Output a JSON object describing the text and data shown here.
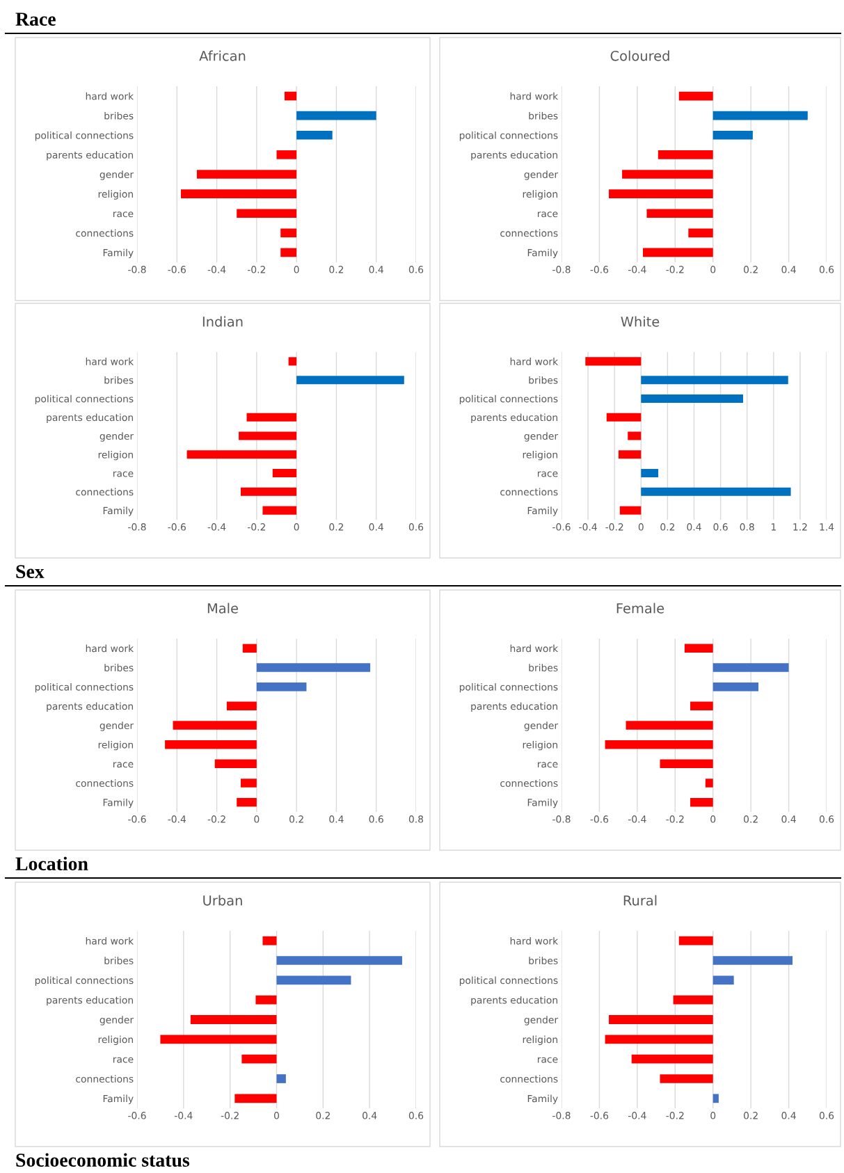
{
  "chart_data": [
    {
      "type": "bar",
      "orientation": "horizontal",
      "title": "African",
      "annotations": [
        "Race"
      ],
      "categories": [
        "hard work",
        "bribes",
        "political connections",
        "parents education",
        "gender",
        "religion",
        "race",
        "connections",
        "Family"
      ],
      "values": [
        -0.06,
        0.4,
        0.18,
        -0.1,
        -0.5,
        -0.58,
        -0.3,
        -0.08,
        -0.08
      ],
      "colors": [
        "#ff0000",
        "#0070c0",
        "#0070c0",
        "#ff0000",
        "#ff0000",
        "#ff0000",
        "#ff0000",
        "#ff0000",
        "#ff0000"
      ],
      "xlim": [
        -0.8,
        0.6
      ],
      "xticks": [
        -0.8,
        -0.6,
        -0.4,
        -0.2,
        0,
        0.2,
        0.4,
        0.6
      ],
      "grid": "x",
      "legend": false
    },
    {
      "type": "bar",
      "orientation": "horizontal",
      "title": "Coloured",
      "categories": [
        "hard work",
        "bribes",
        "political connections",
        "parents education",
        "gender",
        "religion",
        "race",
        "connections",
        "Family"
      ],
      "values": [
        -0.18,
        0.5,
        0.21,
        -0.29,
        -0.48,
        -0.55,
        -0.35,
        -0.13,
        -0.37
      ],
      "colors": [
        "#ff0000",
        "#0070c0",
        "#0070c0",
        "#ff0000",
        "#ff0000",
        "#ff0000",
        "#ff0000",
        "#ff0000",
        "#ff0000"
      ],
      "xlim": [
        -0.8,
        0.6
      ],
      "xticks": [
        -0.8,
        -0.6,
        -0.4,
        -0.2,
        0,
        0.2,
        0.4,
        0.6
      ],
      "grid": "x",
      "legend": false
    },
    {
      "type": "bar",
      "orientation": "horizontal",
      "title": "Indian",
      "categories": [
        "hard work",
        "bribes",
        "political connections",
        "parents education",
        "gender",
        "religion",
        "race",
        "connections",
        "Family"
      ],
      "values": [
        -0.04,
        0.54,
        0,
        -0.25,
        -0.29,
        -0.55,
        -0.12,
        -0.28,
        -0.17
      ],
      "colors": [
        "#ff0000",
        "#0070c0",
        "#0070c0",
        "#ff0000",
        "#ff0000",
        "#ff0000",
        "#ff0000",
        "#ff0000",
        "#ff0000"
      ],
      "xlim": [
        -0.8,
        0.6
      ],
      "xticks": [
        -0.8,
        -0.6,
        -0.4,
        -0.2,
        0,
        0.2,
        0.4,
        0.6
      ],
      "grid": "x",
      "legend": false
    },
    {
      "type": "bar",
      "orientation": "horizontal",
      "title": "White",
      "categories": [
        "hard work",
        "bribes",
        "political connections",
        "parents education",
        "gender",
        "religion",
        "race",
        "connections",
        "Family"
      ],
      "values": [
        -0.42,
        1.11,
        0.77,
        -0.26,
        -0.1,
        -0.17,
        0.13,
        1.13,
        -0.16
      ],
      "colors": [
        "#ff0000",
        "#0070c0",
        "#0070c0",
        "#ff0000",
        "#ff0000",
        "#ff0000",
        "#0070c0",
        "#0070c0",
        "#ff0000"
      ],
      "xlim": [
        -0.6,
        1.4
      ],
      "xticks": [
        -0.6,
        -0.4,
        -0.2,
        0,
        0.2,
        0.4,
        0.6,
        0.8,
        1,
        1.2,
        1.4
      ],
      "grid": "x",
      "legend": false
    },
    {
      "type": "bar",
      "orientation": "horizontal",
      "title": "Male",
      "annotations": [
        "Sex"
      ],
      "categories": [
        "hard work",
        "bribes",
        "political connections",
        "parents education",
        "gender",
        "religion",
        "race",
        "connections",
        "Family"
      ],
      "values": [
        -0.07,
        0.57,
        0.25,
        -0.15,
        -0.42,
        -0.46,
        -0.21,
        -0.08,
        -0.1
      ],
      "colors": [
        "#ff0000",
        "#4472c4",
        "#4472c4",
        "#ff0000",
        "#ff0000",
        "#ff0000",
        "#ff0000",
        "#ff0000",
        "#ff0000"
      ],
      "xlim": [
        -0.6,
        0.8
      ],
      "xticks": [
        -0.6,
        -0.4,
        -0.2,
        0,
        0.2,
        0.4,
        0.6,
        0.8
      ],
      "grid": "x",
      "legend": false
    },
    {
      "type": "bar",
      "orientation": "horizontal",
      "title": "Female",
      "categories": [
        "hard work",
        "bribes",
        "political connections",
        "parents education",
        "gender",
        "religion",
        "race",
        "connections",
        "Family"
      ],
      "values": [
        -0.15,
        0.4,
        0.24,
        -0.12,
        -0.46,
        -0.57,
        -0.28,
        -0.04,
        -0.12
      ],
      "colors": [
        "#ff0000",
        "#4472c4",
        "#4472c4",
        "#ff0000",
        "#ff0000",
        "#ff0000",
        "#ff0000",
        "#ff0000",
        "#ff0000"
      ],
      "xlim": [
        -0.8,
        0.6
      ],
      "xticks": [
        -0.8,
        -0.6,
        -0.4,
        -0.2,
        0,
        0.2,
        0.4,
        0.6
      ],
      "grid": "x",
      "legend": false
    },
    {
      "type": "bar",
      "orientation": "horizontal",
      "title": "Urban",
      "annotations": [
        "Location"
      ],
      "categories": [
        "hard work",
        "bribes",
        "political connections",
        "parents education",
        "gender",
        "religion",
        "race",
        "connections",
        "Family"
      ],
      "values": [
        -0.06,
        0.54,
        0.32,
        -0.09,
        -0.37,
        -0.5,
        -0.15,
        0.04,
        -0.18
      ],
      "colors": [
        "#ff0000",
        "#4472c4",
        "#4472c4",
        "#ff0000",
        "#ff0000",
        "#ff0000",
        "#ff0000",
        "#4472c4",
        "#ff0000"
      ],
      "xlim": [
        -0.6,
        0.6
      ],
      "xticks": [
        -0.6,
        -0.4,
        -0.2,
        0,
        0.2,
        0.4,
        0.6
      ],
      "grid": "x",
      "legend": false
    },
    {
      "type": "bar",
      "orientation": "horizontal",
      "title": "Rural",
      "annotations": [
        "Socioeconomic status"
      ],
      "categories": [
        "hard work",
        "bribes",
        "political connections",
        "parents education",
        "gender",
        "religion",
        "race",
        "connections",
        "Family"
      ],
      "values": [
        -0.18,
        0.42,
        0.11,
        -0.21,
        -0.55,
        -0.57,
        -0.43,
        -0.28,
        0.03
      ],
      "colors": [
        "#ff0000",
        "#4472c4",
        "#4472c4",
        "#ff0000",
        "#ff0000",
        "#ff0000",
        "#ff0000",
        "#ff0000",
        "#4472c4"
      ],
      "xlim": [
        -0.8,
        0.6
      ],
      "xticks": [
        -0.8,
        -0.6,
        -0.4,
        -0.2,
        0,
        0.2,
        0.4,
        0.6
      ],
      "grid": "x",
      "legend": false
    }
  ]
}
